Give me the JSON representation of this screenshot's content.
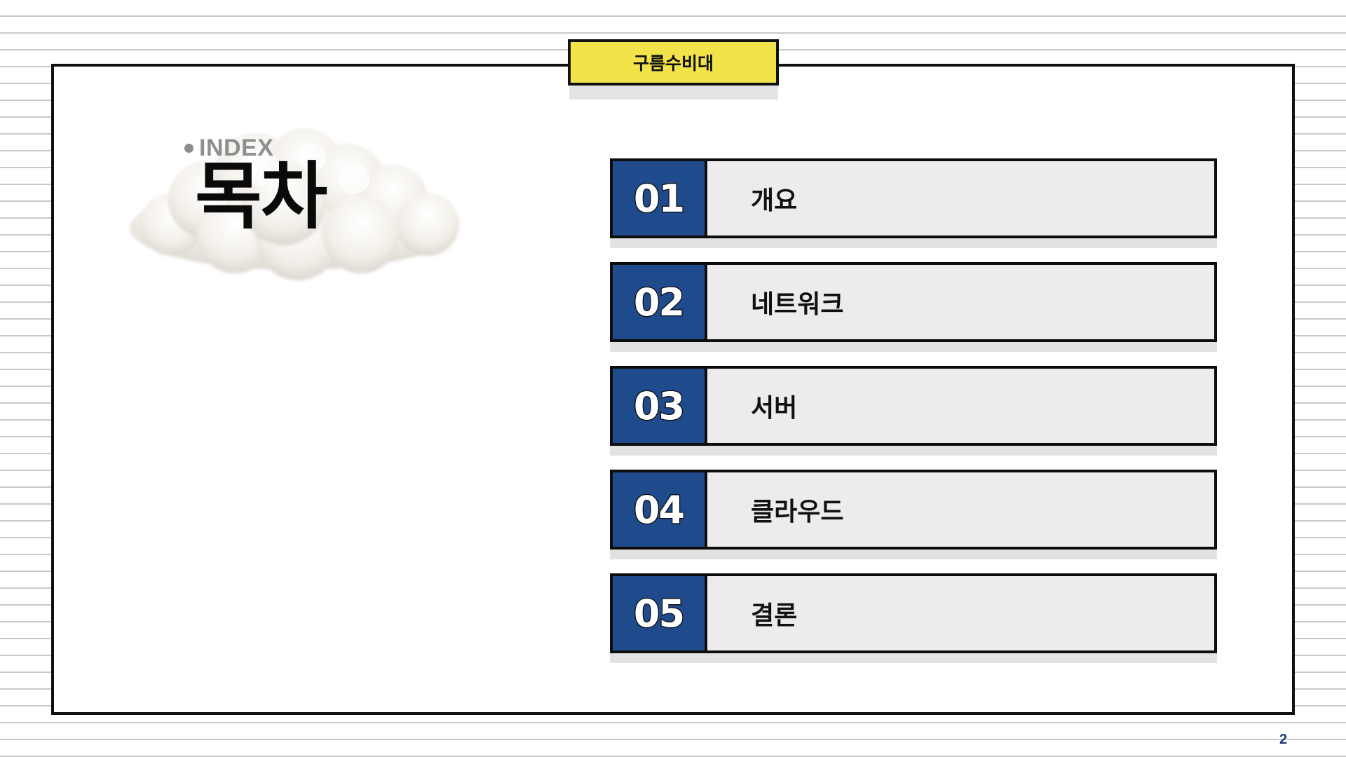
{
  "header": {
    "title": "구름수비대"
  },
  "index": {
    "label": "INDEX",
    "title": "목차",
    "image_icon": "cloud-image"
  },
  "toc": {
    "items": [
      {
        "number": "01",
        "label": "개요"
      },
      {
        "number": "02",
        "label": "네트워크"
      },
      {
        "number": "03",
        "label": "서버"
      },
      {
        "number": "04",
        "label": "클라우드"
      },
      {
        "number": "05",
        "label": "결론"
      }
    ]
  },
  "footer": {
    "page_number": "2"
  },
  "colors": {
    "accent_yellow": "#f2e34a",
    "accent_blue": "#1f4a8c",
    "item_background": "#ececec",
    "border": "#111111"
  }
}
